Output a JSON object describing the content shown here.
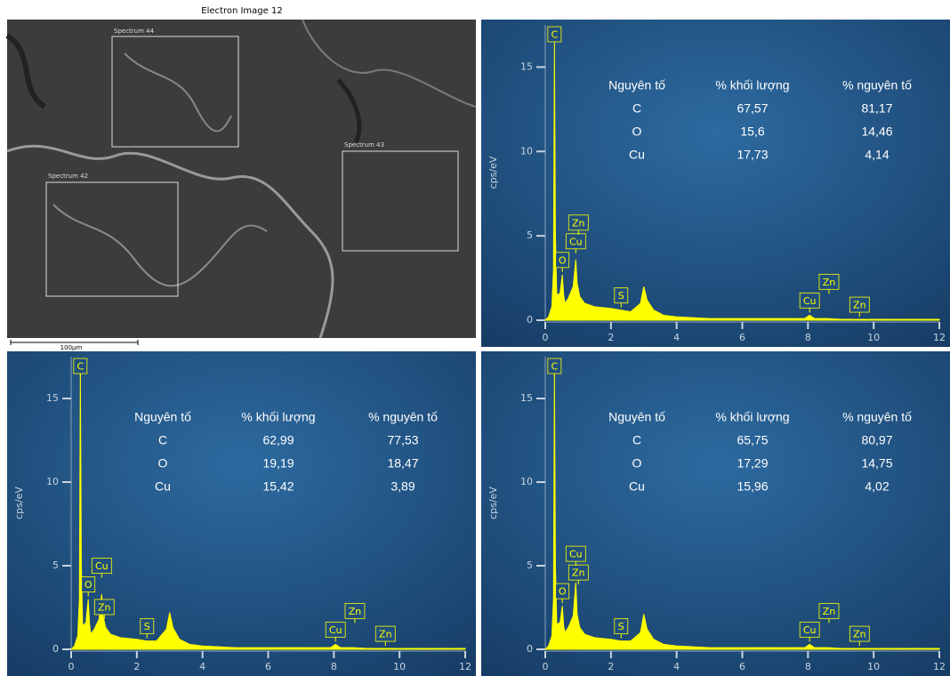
{
  "electron_image": {
    "title": "Electron Image 12",
    "scale_label": "100µm",
    "spectra": [
      "Spectrum 44",
      "Spectrum 43",
      "Spectrum 42"
    ]
  },
  "chart_data": [
    {
      "type": "line",
      "y_label": "cps/eV",
      "xlim": [
        0,
        12
      ],
      "ylim": [
        0,
        17.5
      ],
      "xticks": [
        0,
        2,
        4,
        6,
        8,
        10,
        12
      ],
      "yticks": [
        0,
        5,
        10,
        15
      ],
      "series": [
        {
          "color": "#ffff00",
          "x": [
            0,
            0.1,
            0.2,
            0.25,
            0.28,
            0.31,
            0.35,
            0.45,
            0.52,
            0.56,
            0.6,
            0.7,
            0.85,
            0.93,
            0.97,
            1.05,
            1.2,
            1.5,
            2.0,
            2.3,
            2.6,
            2.9,
            3.0,
            3.1,
            3.3,
            3.6,
            4.0,
            5,
            6,
            7,
            7.9,
            8.05,
            8.2,
            8.6,
            9,
            10,
            11,
            12
          ],
          "values": [
            0,
            0.2,
            0.8,
            3,
            16.3,
            5,
            1.5,
            1.6,
            2.7,
            1.5,
            1.0,
            1.3,
            2.0,
            3.6,
            2.2,
            1.4,
            1.0,
            0.8,
            0.7,
            0.6,
            0.5,
            1.0,
            2.0,
            1.2,
            0.6,
            0.3,
            0.2,
            0.1,
            0.1,
            0.1,
            0.1,
            0.3,
            0.1,
            0.1,
            0.05,
            0.05,
            0.05,
            0.05
          ]
        }
      ],
      "peaks": [
        {
          "label": "C",
          "x": 0.28
        },
        {
          "label": "O",
          "x": 0.52
        },
        {
          "label": "Cu",
          "x": 0.93
        },
        {
          "label": "Zn",
          "x": 1.01
        },
        {
          "label": "S",
          "x": 2.31
        },
        {
          "label": "Cu",
          "x": 8.05
        },
        {
          "label": "Zn",
          "x": 8.64
        },
        {
          "label": "Zn",
          "x": 9.57
        }
      ],
      "table": {
        "header": [
          "Nguyên tố",
          "% khối lượng",
          "% nguyên tố"
        ],
        "rows": [
          [
            "C",
            "67,57",
            "81,17"
          ],
          [
            "O",
            "15,6",
            "14,46"
          ],
          [
            "Cu",
            "17,73",
            "4,14"
          ]
        ]
      }
    },
    {
      "type": "line",
      "y_label": "cps/eV",
      "xlim": [
        0,
        12
      ],
      "ylim": [
        0,
        17.5
      ],
      "xticks": [
        0,
        2,
        4,
        6,
        8,
        10,
        12
      ],
      "yticks": [
        0,
        5,
        10,
        15
      ],
      "series": [
        {
          "color": "#ffff00",
          "x": [
            0,
            0.1,
            0.2,
            0.25,
            0.28,
            0.31,
            0.35,
            0.45,
            0.52,
            0.56,
            0.6,
            0.7,
            0.85,
            0.93,
            0.97,
            1.05,
            1.2,
            1.5,
            2.0,
            2.3,
            2.6,
            2.9,
            3.0,
            3.1,
            3.3,
            3.6,
            4.0,
            5,
            6,
            7,
            7.9,
            8.05,
            8.2,
            8.6,
            9,
            10,
            11,
            12
          ],
          "values": [
            0,
            0.2,
            0.8,
            3,
            16.8,
            5,
            1.4,
            1.6,
            3.0,
            1.5,
            0.9,
            1.2,
            1.8,
            3.3,
            2.0,
            1.3,
            0.9,
            0.7,
            0.6,
            0.5,
            0.5,
            1.2,
            2.2,
            1.3,
            0.6,
            0.3,
            0.2,
            0.1,
            0.1,
            0.1,
            0.1,
            0.3,
            0.1,
            0.1,
            0.05,
            0.05,
            0.05,
            0.05
          ]
        }
      ],
      "peaks": [
        {
          "label": "C",
          "x": 0.28
        },
        {
          "label": "O",
          "x": 0.52
        },
        {
          "label": "Cu",
          "x": 0.93
        },
        {
          "label": "Zn",
          "x": 1.01
        },
        {
          "label": "S",
          "x": 2.31
        },
        {
          "label": "Cu",
          "x": 8.05
        },
        {
          "label": "Zn",
          "x": 8.64
        },
        {
          "label": "Zn",
          "x": 9.57
        }
      ],
      "table": {
        "header": [
          "Nguyên tố",
          "% khối lượng",
          "% nguyên tố"
        ],
        "rows": [
          [
            "C",
            "62,99",
            "77,53"
          ],
          [
            "O",
            "19,19",
            "18,47"
          ],
          [
            "Cu",
            "15,42",
            "3,89"
          ]
        ]
      }
    },
    {
      "type": "line",
      "y_label": "cps/eV",
      "xlim": [
        0,
        12
      ],
      "ylim": [
        0,
        17.5
      ],
      "xticks": [
        0,
        2,
        4,
        6,
        8,
        10,
        12
      ],
      "yticks": [
        0,
        5,
        10,
        15
      ],
      "series": [
        {
          "color": "#ffff00",
          "x": [
            0,
            0.1,
            0.2,
            0.25,
            0.28,
            0.31,
            0.35,
            0.45,
            0.52,
            0.56,
            0.6,
            0.7,
            0.85,
            0.93,
            0.97,
            1.05,
            1.2,
            1.5,
            2.0,
            2.3,
            2.6,
            2.9,
            3.0,
            3.1,
            3.3,
            3.6,
            4.0,
            5,
            6,
            7,
            7.9,
            8.05,
            8.2,
            8.6,
            9,
            10,
            11,
            12
          ],
          "values": [
            0,
            0.2,
            0.8,
            3,
            16.5,
            5,
            1.5,
            1.6,
            2.6,
            1.4,
            1.0,
            1.3,
            2.0,
            4.0,
            2.1,
            1.3,
            0.9,
            0.7,
            0.6,
            0.5,
            0.5,
            1.0,
            2.1,
            1.2,
            0.6,
            0.3,
            0.2,
            0.1,
            0.1,
            0.1,
            0.1,
            0.3,
            0.1,
            0.1,
            0.05,
            0.05,
            0.05,
            0.05
          ]
        }
      ],
      "peaks": [
        {
          "label": "C",
          "x": 0.28
        },
        {
          "label": "O",
          "x": 0.52
        },
        {
          "label": "Zn",
          "x": 1.01
        },
        {
          "label": "Cu",
          "x": 0.93
        },
        {
          "label": "S",
          "x": 2.31
        },
        {
          "label": "Cu",
          "x": 8.05
        },
        {
          "label": "Zn",
          "x": 8.64
        },
        {
          "label": "Zn",
          "x": 9.57
        }
      ],
      "table": {
        "header": [
          "Nguyên tố",
          "% khối lượng",
          "% nguyên tố"
        ],
        "rows": [
          [
            "C",
            "65,75",
            "80,97"
          ],
          [
            "O",
            "17,29",
            "14,75"
          ],
          [
            "Cu",
            "15,96",
            "4,02"
          ]
        ]
      }
    }
  ]
}
